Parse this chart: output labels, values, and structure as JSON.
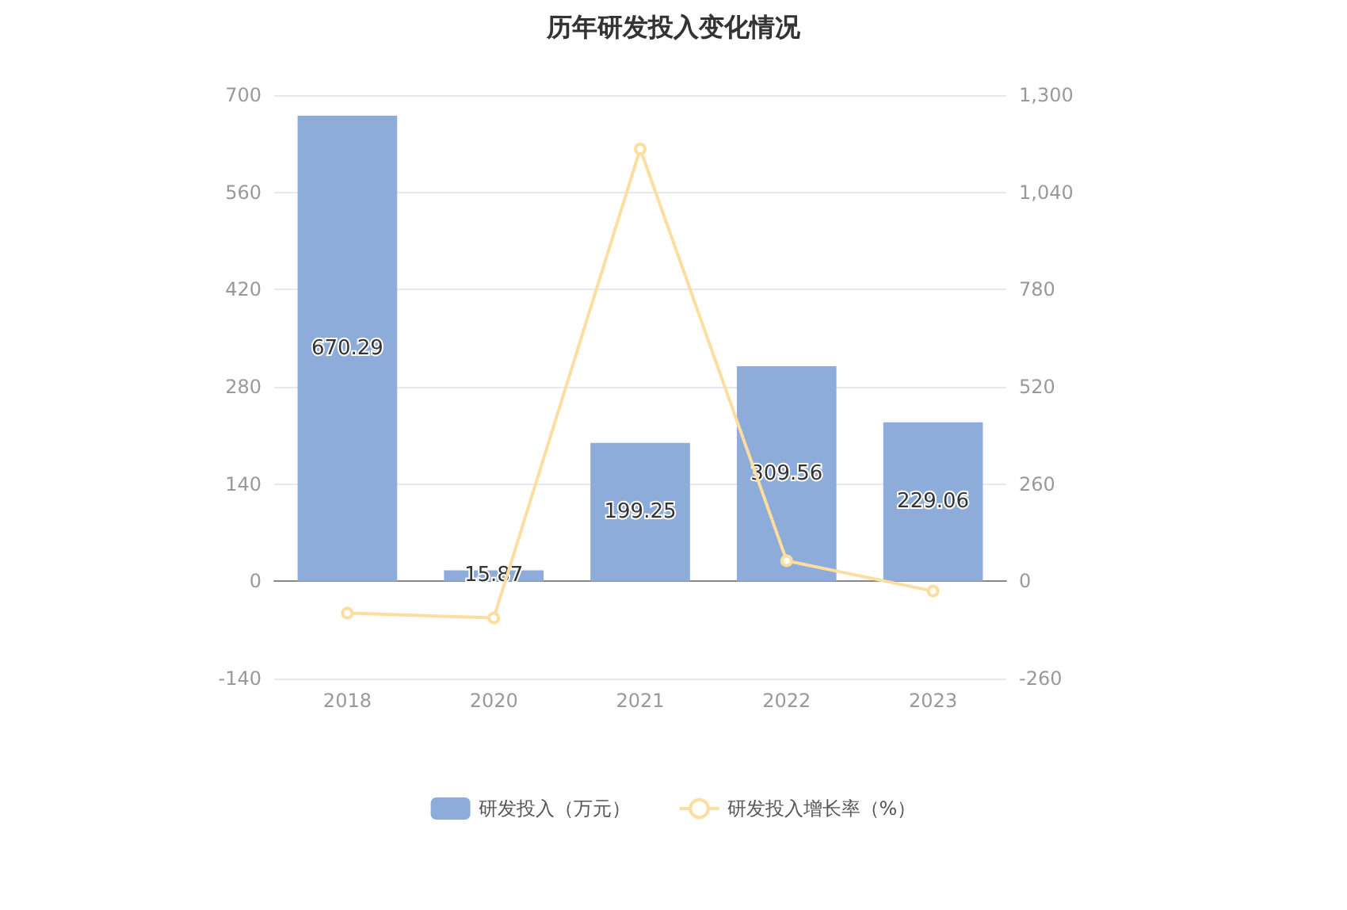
{
  "chart_data": {
    "type": "bar",
    "title": "历年研发投入变化情况",
    "categories": [
      "2018",
      "2020",
      "2021",
      "2022",
      "2023"
    ],
    "series": [
      {
        "name": "研发投入（万元）",
        "color": "#8eacd9",
        "values": [
          670.29,
          15.87,
          199.25,
          309.56,
          229.06
        ],
        "data_labels": true
      },
      {
        "name": "研发投入增长率（%）",
        "type": "line",
        "axis": "y2",
        "color": "#fddda0",
        "marker": "circle",
        "values": [
          -85,
          -98,
          1156,
          55,
          -26
        ]
      }
    ],
    "ylim": [
      -140,
      700
    ],
    "yticks": [
      -140,
      0,
      140,
      280,
      420,
      560,
      700
    ],
    "y2lim": [
      -260,
      1300
    ],
    "y2ticks": [
      -260,
      0,
      260,
      520,
      780,
      {
        "value": 1040,
        "label": "1,040"
      },
      {
        "value": 1300,
        "label": "1,300"
      }
    ],
    "grid": "y",
    "legend": "bottom"
  }
}
